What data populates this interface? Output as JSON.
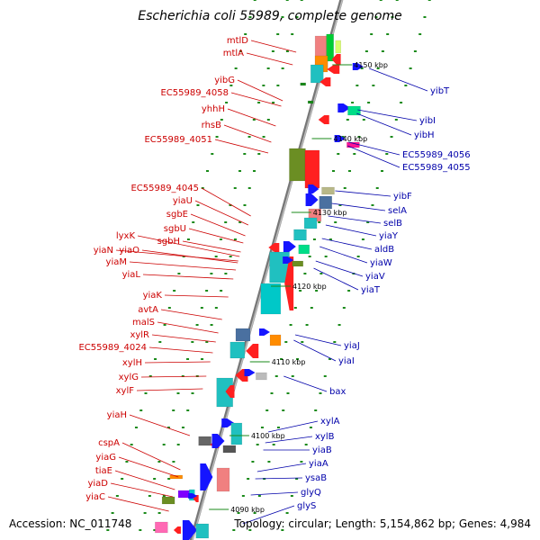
{
  "title": "Escherichia coli 55989, complete genome",
  "footer": {
    "accession": "Accession: NC_011748",
    "summary": "Topology: circular; Length: 5,154,862 bp; Genes: 4,984"
  },
  "colors": {
    "reverse_strand_label": "#cc0000",
    "forward_strand_label": "#0000aa",
    "backbone": "#888888",
    "dot": "#1a8a1a"
  },
  "ticks": [
    "4150 kbp",
    "4140 kbp",
    "4130 kbp",
    "4120 kbp",
    "4110 kbp",
    "4100 kbp",
    "4090 kbp"
  ],
  "genes_left": [
    "mtlD",
    "mtlA",
    "yibG",
    "EC55989_4058",
    "yhhH",
    "rhsB",
    "EC55989_4051",
    "EC55989_4045",
    "yiaU",
    "sgbE",
    "sgbU",
    "sgbH",
    "lyxK",
    "yiaN",
    "yiaO",
    "yiaM",
    "yiaL",
    "yiaK",
    "avtA",
    "malS",
    "xylR",
    "EC55989_4024",
    "xylH",
    "xylG",
    "xylF",
    "yiaH",
    "cspA",
    "yiaG",
    "tiaE",
    "yiaD",
    "yiaC"
  ],
  "genes_right": [
    "yibT",
    "yibI",
    "yibH",
    "EC55989_4056",
    "EC55989_4055",
    "yibF",
    "selA",
    "selB",
    "yiaY",
    "aldB",
    "yiaW",
    "yiaV",
    "yiaT",
    "yiaJ",
    "yiaI",
    "bax",
    "xylA",
    "xylB",
    "yiaB",
    "yiaA",
    "ysaB",
    "glyQ",
    "glyS"
  ]
}
